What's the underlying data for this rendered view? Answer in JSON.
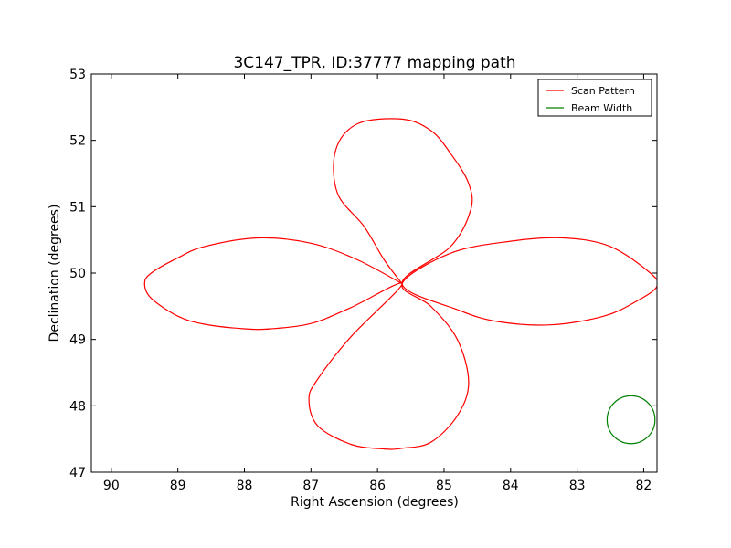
{
  "chart_data": {
    "type": "line",
    "title": "3C147_TPR, ID:37777 mapping path",
    "xlabel": "Right Ascension (degrees)",
    "ylabel": "Declination (degrees)",
    "xlim": [
      90.3,
      81.8
    ],
    "ylim": [
      47,
      53
    ],
    "x_inverted": true,
    "xticks": [
      90,
      89,
      88,
      87,
      86,
      85,
      84,
      83,
      82
    ],
    "yticks": [
      47,
      48,
      49,
      50,
      51,
      52,
      53
    ],
    "grid": false,
    "legend_position": "top-right",
    "center": [
      85.63,
      49.84
    ],
    "series": [
      {
        "name": "Scan Pattern",
        "color": "#ff0000",
        "style": "four-lobe rosette",
        "x": [
          85.63,
          86.3,
          87.0,
          87.8,
          88.6,
          89.0,
          89.4,
          89.5,
          89.4,
          89.0,
          88.6,
          88.0,
          87.6,
          87.0,
          86.4,
          85.63,
          86.4,
          86.9,
          87.03,
          86.9,
          86.4,
          85.9,
          85.63,
          85.2,
          84.8,
          84.63,
          84.8,
          85.2,
          85.63,
          84.9,
          84.0,
          83.2,
          82.5,
          81.9,
          81.8,
          82.1,
          82.6,
          83.4,
          84.2,
          84.8,
          85.63,
          84.9,
          84.6,
          84.63,
          84.9,
          85.2,
          85.63,
          86.3,
          86.63,
          86.6,
          86.2,
          85.9,
          85.63
        ],
        "y": [
          49.84,
          50.2,
          50.45,
          50.53,
          50.4,
          50.23,
          50.0,
          49.84,
          49.62,
          49.35,
          49.23,
          49.16,
          49.16,
          49.24,
          49.48,
          49.84,
          49.04,
          48.4,
          48.1,
          47.7,
          47.42,
          47.35,
          47.36,
          47.45,
          47.85,
          48.35,
          49.0,
          49.5,
          49.84,
          50.3,
          50.48,
          50.53,
          50.4,
          50.0,
          49.8,
          49.58,
          49.35,
          49.22,
          49.27,
          49.45,
          49.84,
          50.4,
          50.95,
          51.35,
          51.8,
          52.15,
          52.32,
          52.25,
          51.85,
          51.2,
          50.7,
          50.2,
          49.84
        ]
      },
      {
        "name": "Beam Width",
        "color": "#008000",
        "style": "circle",
        "center": [
          82.19,
          47.79
        ],
        "radius": 0.36
      }
    ]
  }
}
